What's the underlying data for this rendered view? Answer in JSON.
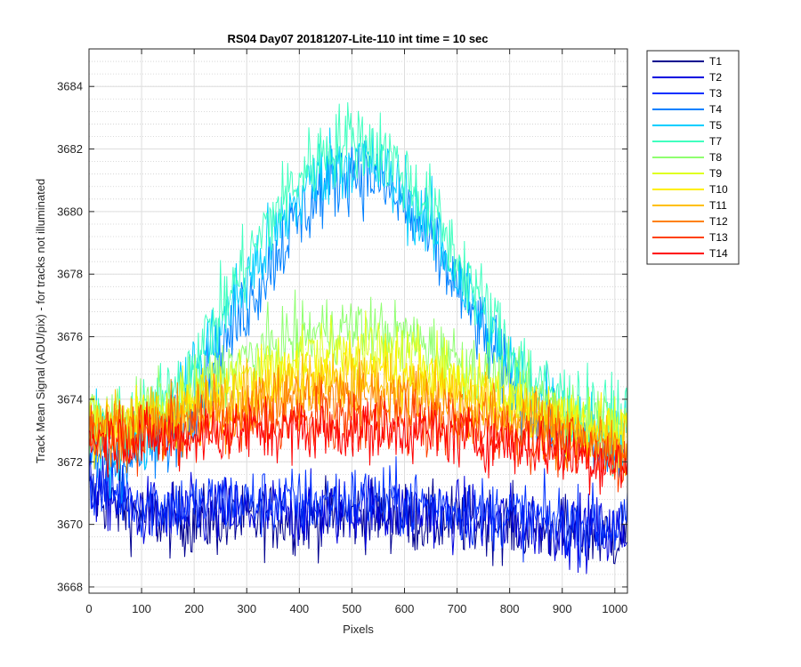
{
  "chart_data": {
    "type": "line",
    "title": "RS04 Day07 20181207-Lite-110 int time = 10 sec",
    "xlabel": "Pixels",
    "ylabel": "Track Mean Signal (ADU/pix) - for tracks not illuminated",
    "xlim": [
      0,
      1024
    ],
    "ylim": [
      3667.8,
      3685.2
    ],
    "xticks": [
      0,
      100,
      200,
      300,
      400,
      500,
      600,
      700,
      800,
      900,
      1000
    ],
    "yticks": [
      3668,
      3670,
      3672,
      3674,
      3676,
      3678,
      3680,
      3682,
      3684
    ],
    "grid": true,
    "minor_grid": true,
    "legend_position": "outside-right",
    "x": [
      0,
      50,
      100,
      150,
      200,
      250,
      300,
      350,
      400,
      450,
      500,
      550,
      600,
      650,
      700,
      750,
      800,
      850,
      900,
      950,
      1000,
      1024
    ],
    "series": [
      {
        "name": "T1",
        "color": "#00008f",
        "noise": 0.8,
        "values": [
          3671.0,
          3670.6,
          3670.3,
          3670.1,
          3670.1,
          3670.1,
          3670.1,
          3670.2,
          3670.2,
          3670.2,
          3670.3,
          3670.3,
          3670.2,
          3670.1,
          3670.1,
          3670.1,
          3670.0,
          3669.9,
          3669.8,
          3669.7,
          3669.6,
          3669.8
        ]
      },
      {
        "name": "T2",
        "color": "#0000df",
        "noise": 0.8,
        "values": [
          3671.2,
          3670.8,
          3670.4,
          3670.3,
          3670.3,
          3670.4,
          3670.4,
          3670.4,
          3670.4,
          3670.4,
          3670.5,
          3670.5,
          3670.4,
          3670.4,
          3670.3,
          3670.2,
          3670.1,
          3670.0,
          3669.9,
          3669.8,
          3669.7,
          3669.9
        ]
      },
      {
        "name": "T3",
        "color": "#0030ff",
        "noise": 0.8,
        "values": [
          3671.4,
          3671.0,
          3670.7,
          3670.6,
          3670.6,
          3670.7,
          3670.7,
          3670.7,
          3670.7,
          3670.7,
          3670.8,
          3670.8,
          3670.7,
          3670.6,
          3670.5,
          3670.4,
          3670.3,
          3670.2,
          3670.1,
          3670.0,
          3669.9,
          3670.1
        ]
      },
      {
        "name": "T4",
        "color": "#0080ff",
        "noise": 0.9,
        "values": [
          3672.2,
          3672.0,
          3672.2,
          3672.8,
          3674.0,
          3675.5,
          3677.0,
          3678.5,
          3679.8,
          3680.8,
          3681.4,
          3681.0,
          3680.1,
          3679.0,
          3677.6,
          3676.0,
          3674.6,
          3673.6,
          3673.0,
          3672.6,
          3672.4,
          3672.4
        ]
      },
      {
        "name": "T5",
        "color": "#00cfff",
        "noise": 0.9,
        "values": [
          3672.6,
          3672.5,
          3672.8,
          3673.5,
          3674.8,
          3676.3,
          3677.8,
          3679.2,
          3680.5,
          3681.4,
          3681.7,
          3681.4,
          3680.6,
          3679.5,
          3678.0,
          3676.5,
          3675.0,
          3674.0,
          3673.4,
          3673.0,
          3672.8,
          3672.8
        ]
      },
      {
        "name": "T7",
        "color": "#40ffbf",
        "noise": 0.9,
        "values": [
          3673.0,
          3673.0,
          3673.3,
          3674.0,
          3675.3,
          3676.8,
          3678.4,
          3679.9,
          3681.1,
          3682.0,
          3682.4,
          3682.1,
          3681.2,
          3680.1,
          3678.6,
          3677.0,
          3675.6,
          3674.6,
          3674.0,
          3673.6,
          3673.4,
          3673.4
        ]
      },
      {
        "name": "T8",
        "color": "#8fff70",
        "noise": 0.75,
        "values": [
          3673.4,
          3673.4,
          3673.6,
          3673.9,
          3674.3,
          3674.8,
          3675.3,
          3675.7,
          3676.0,
          3676.2,
          3676.3,
          3676.2,
          3676.0,
          3675.7,
          3675.3,
          3674.9,
          3674.5,
          3674.1,
          3673.8,
          3673.5,
          3673.3,
          3673.3
        ]
      },
      {
        "name": "T9",
        "color": "#dfff20",
        "noise": 0.75,
        "values": [
          3673.3,
          3673.3,
          3673.5,
          3673.7,
          3674.0,
          3674.4,
          3674.8,
          3675.1,
          3675.4,
          3675.5,
          3675.6,
          3675.5,
          3675.3,
          3675.1,
          3674.8,
          3674.4,
          3674.1,
          3673.8,
          3673.5,
          3673.3,
          3673.1,
          3673.1
        ]
      },
      {
        "name": "T10",
        "color": "#ffef00",
        "noise": 0.75,
        "values": [
          3673.2,
          3673.2,
          3673.3,
          3673.5,
          3673.8,
          3674.1,
          3674.4,
          3674.6,
          3674.8,
          3674.9,
          3675.0,
          3674.9,
          3674.8,
          3674.6,
          3674.3,
          3674.0,
          3673.7,
          3673.5,
          3673.2,
          3673.0,
          3672.8,
          3672.8
        ]
      },
      {
        "name": "T11",
        "color": "#ffbf00",
        "noise": 0.75,
        "values": [
          3673.1,
          3673.1,
          3673.2,
          3673.4,
          3673.6,
          3673.9,
          3674.1,
          3674.3,
          3674.4,
          3674.5,
          3674.5,
          3674.5,
          3674.4,
          3674.2,
          3674.0,
          3673.7,
          3673.5,
          3673.2,
          3673.0,
          3672.8,
          3672.6,
          3672.6
        ]
      },
      {
        "name": "T12",
        "color": "#ff8000",
        "noise": 0.75,
        "values": [
          3673.0,
          3673.0,
          3673.1,
          3673.2,
          3673.4,
          3673.6,
          3673.8,
          3673.9,
          3674.0,
          3674.1,
          3674.1,
          3674.1,
          3674.0,
          3673.9,
          3673.7,
          3673.5,
          3673.3,
          3673.1,
          3672.9,
          3672.6,
          3672.4,
          3672.4
        ]
      },
      {
        "name": "T13",
        "color": "#ff4000",
        "noise": 0.7,
        "values": [
          3672.9,
          3672.8,
          3672.8,
          3672.9,
          3673.0,
          3673.1,
          3673.2,
          3673.3,
          3673.3,
          3673.3,
          3673.3,
          3673.3,
          3673.3,
          3673.2,
          3673.1,
          3673.0,
          3672.9,
          3672.7,
          3672.5,
          3672.3,
          3672.1,
          3672.1
        ]
      },
      {
        "name": "T14",
        "color": "#ff0000",
        "noise": 0.7,
        "values": [
          3672.8,
          3672.7,
          3672.7,
          3672.7,
          3672.8,
          3672.9,
          3673.0,
          3673.0,
          3673.0,
          3673.0,
          3673.0,
          3673.0,
          3673.0,
          3672.9,
          3672.8,
          3672.7,
          3672.6,
          3672.5,
          3672.3,
          3672.1,
          3671.9,
          3671.9
        ]
      }
    ]
  }
}
